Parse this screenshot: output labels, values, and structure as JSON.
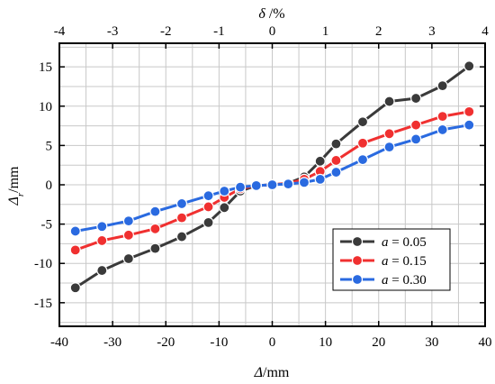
{
  "chart_data": {
    "type": "line",
    "xlabel": "Δ/mm",
    "ylabel": "Δr/mm",
    "x2label": "δ/%",
    "xlim": [
      -40,
      40
    ],
    "ylim": [
      -18,
      18
    ],
    "x2lim": [
      -4,
      4
    ],
    "xticks": [
      -40,
      -30,
      -20,
      -10,
      0,
      10,
      20,
      30,
      40
    ],
    "yticks": [
      -15,
      -10,
      -5,
      0,
      5,
      10,
      15
    ],
    "x2ticks": [
      -4,
      -3,
      -2,
      -1,
      0,
      1,
      2,
      3,
      4
    ],
    "grid": true,
    "legend_position": "lower-right",
    "series": [
      {
        "name": "a = 0.05",
        "color": "#3a3a3a",
        "x": [
          -37,
          -32,
          -27,
          -22,
          -17,
          -12,
          -9,
          -6,
          -3,
          0,
          3,
          6,
          9,
          12,
          17,
          22,
          27,
          32,
          37
        ],
        "y": [
          -13.1,
          -10.9,
          -9.4,
          -8.1,
          -6.6,
          -4.8,
          -2.9,
          -0.8,
          -0.1,
          0.0,
          0.2,
          1.0,
          3.0,
          5.2,
          8.0,
          10.6,
          11.0,
          12.6,
          15.1
        ]
      },
      {
        "name": "a = 0.15",
        "color": "#f03030",
        "x": [
          -37,
          -32,
          -27,
          -22,
          -17,
          -12,
          -9,
          -6,
          -3,
          0,
          3,
          6,
          9,
          12,
          17,
          22,
          27,
          32,
          37
        ],
        "y": [
          -8.3,
          -7.1,
          -6.4,
          -5.6,
          -4.2,
          -2.8,
          -1.6,
          -0.5,
          -0.1,
          0.0,
          0.2,
          0.7,
          1.7,
          3.1,
          5.3,
          6.5,
          7.6,
          8.7,
          9.3
        ]
      },
      {
        "name": "a = 0.30",
        "color": "#2a6ae0",
        "x": [
          -37,
          -32,
          -27,
          -22,
          -17,
          -12,
          -9,
          -6,
          -3,
          0,
          3,
          6,
          9,
          12,
          17,
          22,
          27,
          32,
          37
        ],
        "y": [
          -5.9,
          -5.3,
          -4.6,
          -3.4,
          -2.4,
          -1.4,
          -0.8,
          -0.3,
          -0.1,
          0.0,
          0.1,
          0.3,
          0.7,
          1.6,
          3.2,
          4.8,
          5.8,
          7.0,
          7.6
        ]
      }
    ]
  }
}
